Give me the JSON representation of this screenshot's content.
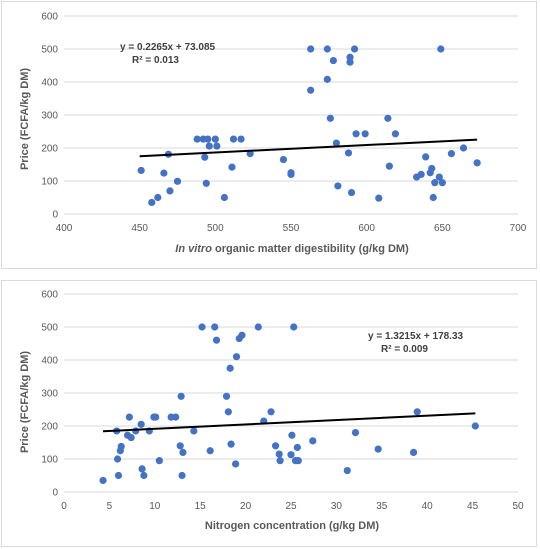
{
  "chart_data": [
    {
      "type": "scatter",
      "title": "",
      "xlabel_italic": "In vitro",
      "xlabel_rest": " organic matter digestibility (g/kg DM)",
      "ylabel": "Price (FCFA/kg DM)",
      "xlim": [
        400,
        700
      ],
      "ylim": [
        0,
        600
      ],
      "xticks": [
        400,
        450,
        500,
        550,
        600,
        650,
        700
      ],
      "yticks": [
        0,
        100,
        200,
        300,
        400,
        500,
        600
      ],
      "grid": "horizontal",
      "marker_color": "#4472c4",
      "trendline": {
        "slope": 0.2265,
        "intercept": 73.085,
        "x_range": [
          450,
          673
        ]
      },
      "equation_text": "y = 0.2265x + 73.085",
      "r2_text": "R² = 0.013",
      "points": [
        [
          451,
          132
        ],
        [
          458,
          35
        ],
        [
          462,
          50
        ],
        [
          466,
          124
        ],
        [
          469,
          181
        ],
        [
          470,
          70
        ],
        [
          475,
          99
        ],
        [
          488,
          227
        ],
        [
          492,
          227
        ],
        [
          493,
          172
        ],
        [
          494,
          93
        ],
        [
          495,
          227
        ],
        [
          496,
          206
        ],
        [
          500,
          227
        ],
        [
          501,
          206
        ],
        [
          506,
          50
        ],
        [
          511,
          142
        ],
        [
          512,
          227
        ],
        [
          517,
          227
        ],
        [
          523,
          183
        ],
        [
          545,
          165
        ],
        [
          550,
          125
        ],
        [
          550,
          120
        ],
        [
          563,
          500
        ],
        [
          563,
          375
        ],
        [
          574,
          500
        ],
        [
          574,
          408
        ],
        [
          576,
          290
        ],
        [
          578,
          465
        ],
        [
          580,
          215
        ],
        [
          581,
          85
        ],
        [
          588,
          185
        ],
        [
          589,
          475
        ],
        [
          589,
          460
        ],
        [
          590,
          65
        ],
        [
          592,
          500
        ],
        [
          593,
          243
        ],
        [
          599,
          243
        ],
        [
          608,
          48
        ],
        [
          614,
          290
        ],
        [
          615,
          145
        ],
        [
          619,
          243
        ],
        [
          633,
          112
        ],
        [
          636,
          120
        ],
        [
          639,
          173
        ],
        [
          642,
          125
        ],
        [
          643,
          138
        ],
        [
          644,
          50
        ],
        [
          645,
          95
        ],
        [
          648,
          112
        ],
        [
          649,
          500
        ],
        [
          650,
          95
        ],
        [
          656,
          183
        ],
        [
          664,
          200
        ],
        [
          673,
          155
        ]
      ]
    },
    {
      "type": "scatter",
      "title": "",
      "xlabel": "Nitrogen concentration (g/kg DM)",
      "ylabel": "Price (FCFA/kg DM)",
      "xlim": [
        0,
        50
      ],
      "ylim": [
        0,
        600
      ],
      "xticks": [
        0,
        5,
        10,
        15,
        20,
        25,
        30,
        35,
        40,
        45,
        50
      ],
      "yticks": [
        0,
        100,
        200,
        300,
        400,
        500,
        600
      ],
      "grid": "horizontal",
      "marker_color": "#4472c4",
      "trendline": {
        "slope": 1.3215,
        "intercept": 178.33,
        "x_range": [
          4.3,
          45.3
        ]
      },
      "equation_text": "y = 1.3215x + 178.33",
      "r2_text": "R² = 0.009",
      "points": [
        [
          4.3,
          35
        ],
        [
          5.8,
          185
        ],
        [
          5.9,
          100
        ],
        [
          6.0,
          50
        ],
        [
          6.2,
          125
        ],
        [
          6.3,
          138
        ],
        [
          7.0,
          172
        ],
        [
          7.2,
          227
        ],
        [
          7.4,
          165
        ],
        [
          7.9,
          185
        ],
        [
          8.5,
          205
        ],
        [
          8.6,
          70
        ],
        [
          8.8,
          50
        ],
        [
          9.4,
          185
        ],
        [
          9.9,
          227
        ],
        [
          10.1,
          227
        ],
        [
          10.5,
          95
        ],
        [
          11.8,
          227
        ],
        [
          12.3,
          227
        ],
        [
          12.8,
          140
        ],
        [
          12.9,
          290
        ],
        [
          13.0,
          50
        ],
        [
          13.1,
          120
        ],
        [
          14.3,
          185
        ],
        [
          15.2,
          500
        ],
        [
          16.1,
          125
        ],
        [
          16.6,
          500
        ],
        [
          16.8,
          460
        ],
        [
          17.9,
          290
        ],
        [
          18.1,
          243
        ],
        [
          18.3,
          375
        ],
        [
          18.4,
          145
        ],
        [
          18.9,
          85
        ],
        [
          19.0,
          410
        ],
        [
          19.3,
          465
        ],
        [
          19.6,
          475
        ],
        [
          21.4,
          500
        ],
        [
          22.0,
          215
        ],
        [
          22.8,
          243
        ],
        [
          23.3,
          140
        ],
        [
          23.7,
          115
        ],
        [
          23.8,
          95
        ],
        [
          25.0,
          113
        ],
        [
          25.1,
          172
        ],
        [
          25.3,
          500
        ],
        [
          25.5,
          95
        ],
        [
          25.7,
          135
        ],
        [
          25.8,
          95
        ],
        [
          27.4,
          155
        ],
        [
          31.2,
          65
        ],
        [
          32.1,
          180
        ],
        [
          34.6,
          130
        ],
        [
          38.5,
          120
        ],
        [
          38.9,
          243
        ],
        [
          45.3,
          200
        ]
      ]
    }
  ]
}
